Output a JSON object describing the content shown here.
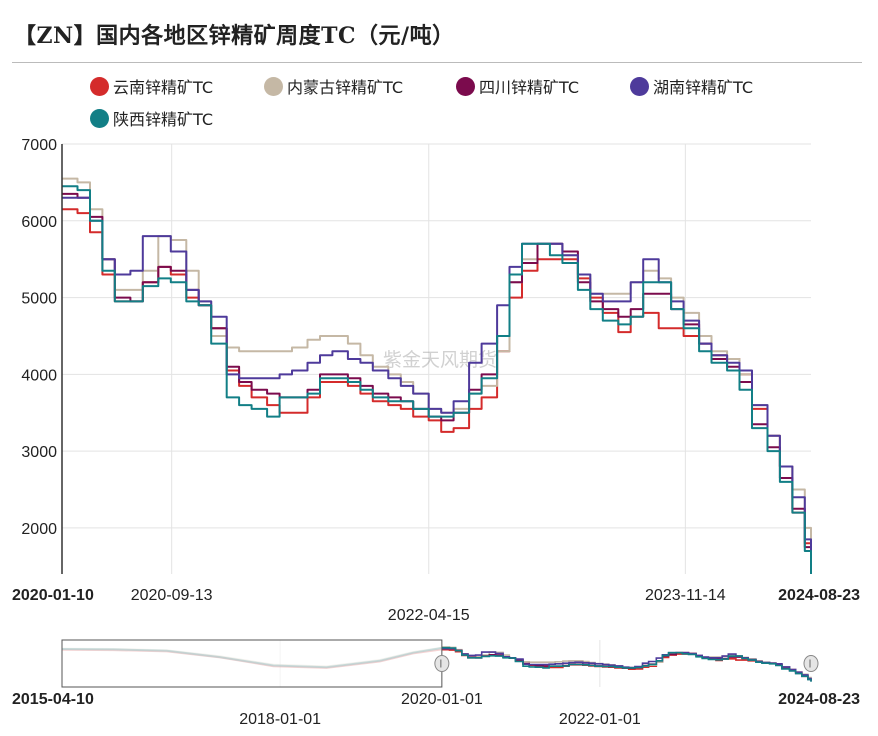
{
  "title": "【ZN】国内各地区锌精矿周度TC（元/吨）",
  "watermark": "紫金天风期货",
  "legend": [
    {
      "name": "云南锌精矿TC",
      "color": "#d42b2b"
    },
    {
      "name": "内蒙古锌精矿TC",
      "color": "#c5b8a5"
    },
    {
      "name": "四川锌精矿TC",
      "color": "#7b0b4d"
    },
    {
      "name": "湖南锌精矿TC",
      "color": "#4e3a9b"
    },
    {
      "name": "陕西锌精矿TC",
      "color": "#127f86"
    }
  ],
  "chart_data": {
    "type": "line",
    "x_start": "2020-01-10",
    "x_end": "2024-08-23",
    "x_tick_labels": [
      "2020-01-10",
      "2020-09-13",
      "2022-04-15",
      "2023-11-14",
      "2024-08-23"
    ],
    "ylim": [
      1400,
      7000
    ],
    "y_ticks": [
      2000,
      3000,
      4000,
      5000,
      6000,
      7000
    ],
    "grid": true,
    "x": [
      "2020-01-10",
      "2020-02-14",
      "2020-03-13",
      "2020-04-10",
      "2020-05-08",
      "2020-06-12",
      "2020-07-10",
      "2020-08-14",
      "2020-09-11",
      "2020-10-16",
      "2020-11-13",
      "2020-12-11",
      "2021-01-15",
      "2021-02-12",
      "2021-03-12",
      "2021-04-16",
      "2021-05-14",
      "2021-06-11",
      "2021-07-16",
      "2021-08-13",
      "2021-09-10",
      "2021-10-15",
      "2021-11-12",
      "2021-12-10",
      "2022-01-14",
      "2022-02-11",
      "2022-03-11",
      "2022-04-15",
      "2022-05-13",
      "2022-06-10",
      "2022-07-15",
      "2022-08-12",
      "2022-09-16",
      "2022-10-14",
      "2022-11-11",
      "2022-12-16",
      "2023-01-13",
      "2023-02-10",
      "2023-03-17",
      "2023-04-14",
      "2023-05-12",
      "2023-06-16",
      "2023-07-14",
      "2023-08-11",
      "2023-09-15",
      "2023-10-13",
      "2023-11-10",
      "2023-12-15",
      "2024-01-12",
      "2024-02-16",
      "2024-03-15",
      "2024-04-12",
      "2024-05-17",
      "2024-06-14",
      "2024-07-12",
      "2024-08-09",
      "2024-08-23"
    ],
    "series": [
      {
        "name": "云南锌精矿TC",
        "color": "#d42b2b",
        "values": [
          6150,
          6100,
          5850,
          5300,
          4950,
          4950,
          5200,
          5400,
          5300,
          5000,
          4900,
          4600,
          4050,
          3850,
          3700,
          3600,
          3500,
          3500,
          3700,
          3900,
          3900,
          3850,
          3750,
          3650,
          3600,
          3550,
          3450,
          3400,
          3250,
          3300,
          3550,
          3700,
          4300,
          5000,
          5350,
          5500,
          5500,
          5500,
          5250,
          5000,
          4800,
          4550,
          4750,
          4800,
          4600,
          4600,
          4500,
          4400,
          4250,
          4200,
          4000,
          3550,
          3200,
          2800,
          2200,
          1800,
          1700
        ]
      },
      {
        "name": "内蒙古锌精矿TC",
        "color": "#c5b8a5",
        "values": [
          6550,
          6500,
          6150,
          5500,
          5100,
          5100,
          5350,
          5800,
          5750,
          5350,
          4950,
          4500,
          4350,
          4300,
          4300,
          4300,
          4300,
          4350,
          4450,
          4500,
          4500,
          4400,
          4250,
          4100,
          4000,
          3900,
          3750,
          3550,
          3500,
          3550,
          3750,
          3850,
          4300,
          5200,
          5500,
          5700,
          5700,
          5550,
          5300,
          5050,
          5050,
          5050,
          5200,
          5350,
          5250,
          5000,
          4800,
          4500,
          4300,
          4200,
          4000,
          3600,
          3200,
          2800,
          2500,
          2000,
          1600
        ]
      },
      {
        "name": "四川锌精矿TC",
        "color": "#7b0b4d",
        "values": [
          6350,
          6300,
          6050,
          5500,
          5000,
          4950,
          5200,
          5400,
          5350,
          5100,
          4900,
          4600,
          4100,
          3900,
          3800,
          3750,
          3700,
          3700,
          3800,
          4000,
          4000,
          3950,
          3850,
          3750,
          3700,
          3650,
          3550,
          3450,
          3400,
          3500,
          3800,
          4000,
          4500,
          5200,
          5450,
          5700,
          5700,
          5600,
          5200,
          4950,
          4850,
          4750,
          4850,
          5050,
          5050,
          4850,
          4650,
          4400,
          4200,
          4100,
          3900,
          3350,
          3050,
          2650,
          2250,
          1750,
          1450
        ]
      },
      {
        "name": "湖南锌精矿TC",
        "color": "#4e3a9b",
        "values": [
          6300,
          6300,
          6000,
          5500,
          5300,
          5350,
          5800,
          5800,
          5600,
          5100,
          4950,
          4750,
          4000,
          3950,
          3950,
          3950,
          4000,
          4050,
          4150,
          4250,
          4300,
          4200,
          4150,
          4050,
          3950,
          3850,
          3750,
          3550,
          3500,
          3650,
          4150,
          4400,
          4900,
          5400,
          5700,
          5700,
          5700,
          5550,
          5300,
          5050,
          4950,
          4950,
          5200,
          5500,
          5200,
          4950,
          4700,
          4400,
          4250,
          4150,
          4050,
          3600,
          3200,
          2800,
          2400,
          1850,
          1550
        ]
      },
      {
        "name": "陕西锌精矿TC",
        "color": "#127f86",
        "values": [
          6450,
          6400,
          6000,
          5350,
          4950,
          4950,
          5150,
          5250,
          5200,
          4950,
          4900,
          4400,
          3700,
          3600,
          3550,
          3450,
          3700,
          3700,
          3750,
          3950,
          3950,
          3900,
          3800,
          3700,
          3650,
          3650,
          3550,
          3450,
          3450,
          3500,
          3750,
          3950,
          4500,
          5300,
          5700,
          5700,
          5550,
          5450,
          5100,
          4850,
          4700,
          4650,
          4750,
          5200,
          5200,
          4850,
          4600,
          4300,
          4150,
          4050,
          3800,
          3300,
          3000,
          2600,
          2200,
          1700,
          1400
        ]
      }
    ]
  },
  "navigator": {
    "start_label": "2015-04-10",
    "end_label": "2024-08-23",
    "handle_label": "2020-01-01",
    "tick_labels": [
      "2018-01-01",
      "2022-01-01"
    ],
    "selected_range": [
      "2020-01-10",
      "2024-08-23"
    ]
  }
}
